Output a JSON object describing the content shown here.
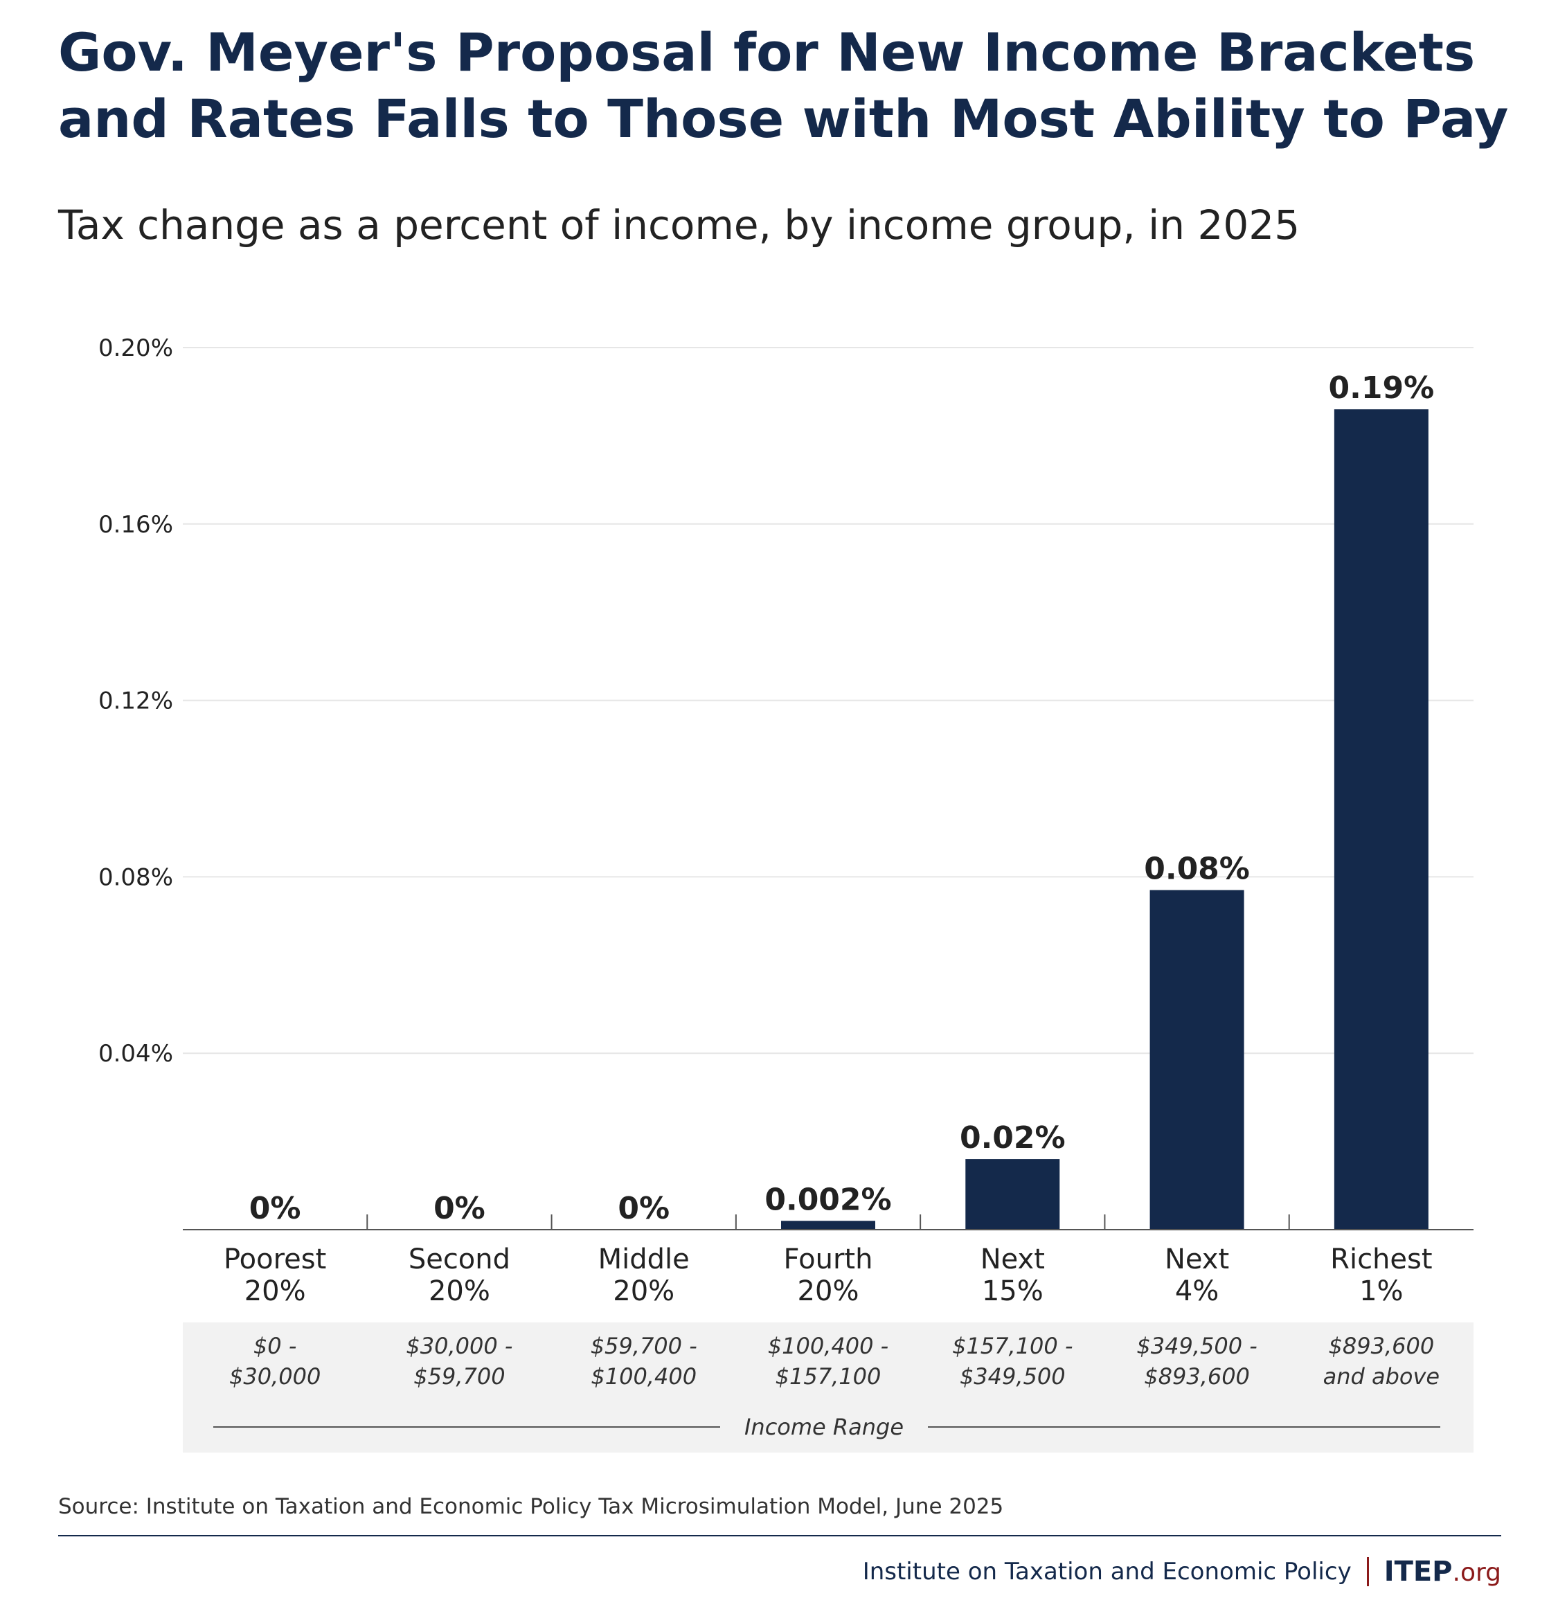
{
  "title_line1": "Gov. Meyer's Proposal for New Income Brackets",
  "title_line2": "and Rates Falls to Those with Most Ability to Pay",
  "subtitle": "Tax change as a percent of income, by income group, in 2025",
  "chart_data": {
    "type": "bar",
    "categories": [
      [
        "Poorest",
        "20%"
      ],
      [
        "Second",
        "20%"
      ],
      [
        "Middle",
        "20%"
      ],
      [
        "Fourth",
        "20%"
      ],
      [
        "Next",
        "15%"
      ],
      [
        "Next",
        "4%"
      ],
      [
        "Richest",
        "1%"
      ]
    ],
    "income_ranges": [
      [
        "$0 -",
        "$30,000"
      ],
      [
        "$30,000 -",
        "$59,700"
      ],
      [
        "$59,700 -",
        "$100,400"
      ],
      [
        "$100,400 -",
        "$157,100"
      ],
      [
        "$157,100 -",
        "$349,500"
      ],
      [
        "$349,500 -",
        "$893,600"
      ],
      [
        "$893,600",
        "and above"
      ]
    ],
    "values": [
      0,
      0,
      0,
      0.002,
      0.016,
      0.077,
      0.186
    ],
    "data_labels": [
      "0%",
      "0%",
      "0%",
      "0.002%",
      "0.02%",
      "0.08%",
      "0.19%"
    ],
    "yticks": [
      "0.04%",
      "0.08%",
      "0.12%",
      "0.16%",
      "0.20%"
    ],
    "ytick_values": [
      0.04,
      0.08,
      0.12,
      0.16,
      0.2
    ],
    "ylim": [
      0,
      0.2
    ],
    "income_range_label": "Income Range",
    "grid": true,
    "bar_color": "#14294b"
  },
  "source": "Source: Institute on Taxation and Economic Policy Tax Microsimulation Model, June 2025",
  "footer": {
    "org_name": "Institute on Taxation and Economic Policy",
    "logo_main": "ITEP",
    "logo_suffix": ".org"
  }
}
